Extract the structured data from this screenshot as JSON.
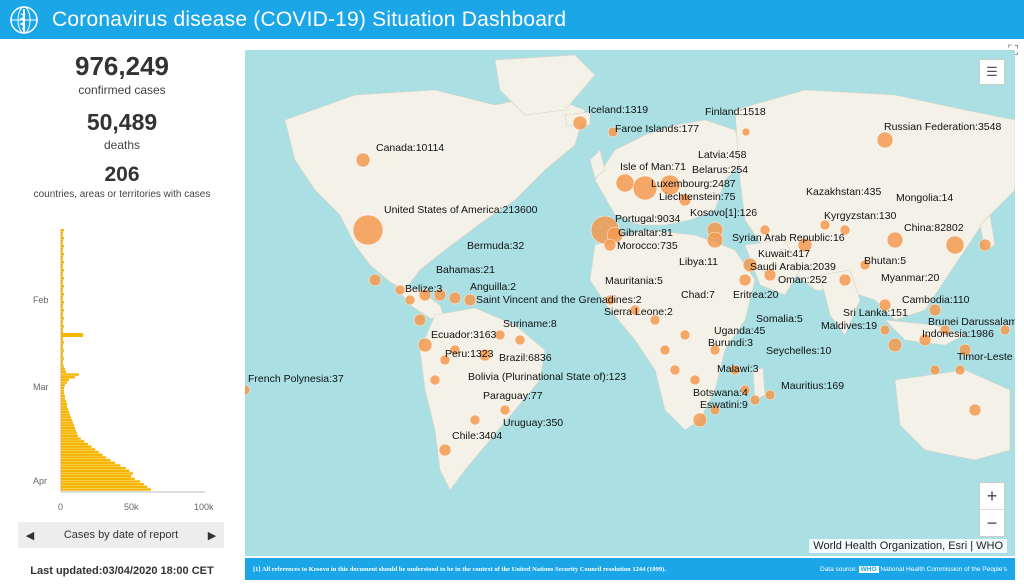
{
  "header": {
    "title": "Coronavirus disease (COVID-19) Situation Dashboard"
  },
  "stats": {
    "confirmed_value": "976,249",
    "confirmed_label": "confirmed cases",
    "deaths_value": "50,489",
    "deaths_label": "deaths",
    "countries_value": "206",
    "countries_label": "countries, areas or territories with cases"
  },
  "histogram": {
    "y_ticks": [
      "Feb",
      "Mar",
      "Apr"
    ],
    "x_ticks": [
      "0",
      "50k",
      "100k"
    ],
    "control_label": "Cases by date of report"
  },
  "last_updated": "Last updated:03/04/2020 18:00 CET",
  "map": {
    "labels": [
      "Iceland:1319",
      "Finland:1518",
      "Faroe Islands:177",
      "Russian Federation:3548",
      "Canada:10114",
      "Latvia:458",
      "Isle of Man:71",
      "Belarus:254",
      "Luxembourg:2487",
      "Liechtenstein:75",
      "Kazakhstan:435",
      "Mongolia:14",
      "United States of America:213600",
      "Kosovo[1]:126",
      "Portugal:9034",
      "Kyrgyzstan:130",
      "Gibraltar:81",
      "China:82802",
      "Syrian Arab Republic:16",
      "Morocco:735",
      "Bermuda:32",
      "Kuwait:417",
      "Libya:11",
      "Bhutan:5",
      "Saudi Arabia:2039",
      "Bahamas:21",
      "Mauritania:5",
      "Myanmar:20",
      "Oman:252",
      "Belize:3",
      "Anguilla:2",
      "Chad:7",
      "Eritrea:20",
      "Saint Vincent and the Grenadines:2",
      "Cambodia:110",
      "Sierra Leone:2",
      "Sri Lanka:151",
      "Somalia:5",
      "Brunei Darussalam",
      "Suriname:8",
      "Maldives:19",
      "Indonesia:1986",
      "Uganda:45",
      "Ecuador:3163",
      "Burundi:3",
      "Seychelles:10",
      "Timor-Leste",
      "Peru:1323",
      "Brazil:6836",
      "Malawi:3",
      "French Polynesia:37",
      "Bolivia (Plurinational State of):123",
      "Mauritius:169",
      "Botswana:4",
      "Paraguay:77",
      "Eswatini:9",
      "Uruguay:350",
      "Chile:3404"
    ],
    "attribution": "World Health Organization, Esri | WHO",
    "zoom_in": "+",
    "zoom_out": "−",
    "legend_icon": "list-icon"
  },
  "footer": {
    "note": "[1] All references to Kosovo in this document should be understood to be in the context of the United Nations Security Council resolution 1244 (1999).",
    "source_prefix": "Data source:",
    "source_who": "WHO",
    "source_rest": "National Health Commission of the People's"
  },
  "colors": {
    "header_bg": "#1ba6e8",
    "bubble": "#f39a4f",
    "histogram": "#f7b500",
    "ocean": "#aadfe4",
    "land": "#f4f1e8"
  }
}
